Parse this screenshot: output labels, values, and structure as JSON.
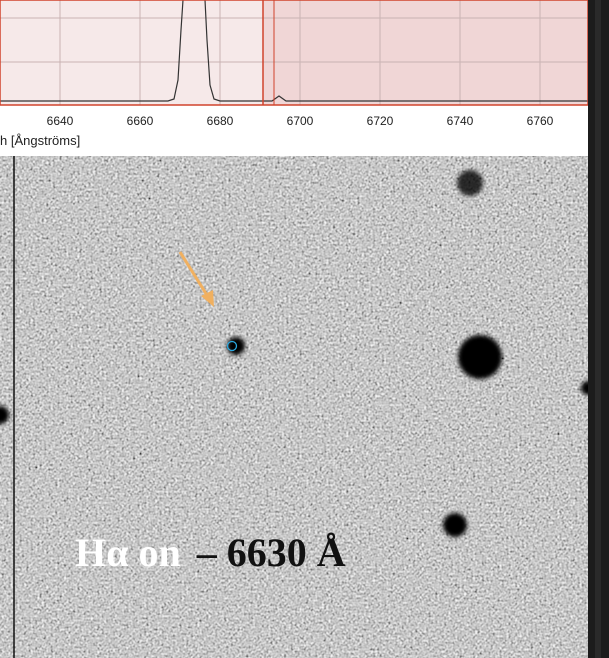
{
  "spectrum": {
    "xlim": [
      6625,
      6772
    ],
    "xticks": [
      6640,
      6660,
      6680,
      6700,
      6720,
      6740,
      6760
    ],
    "x_label": "h [Ångströms]"
  },
  "overlay": {
    "line": "Hα on",
    "wavelength": "– 6630 Å"
  }
}
